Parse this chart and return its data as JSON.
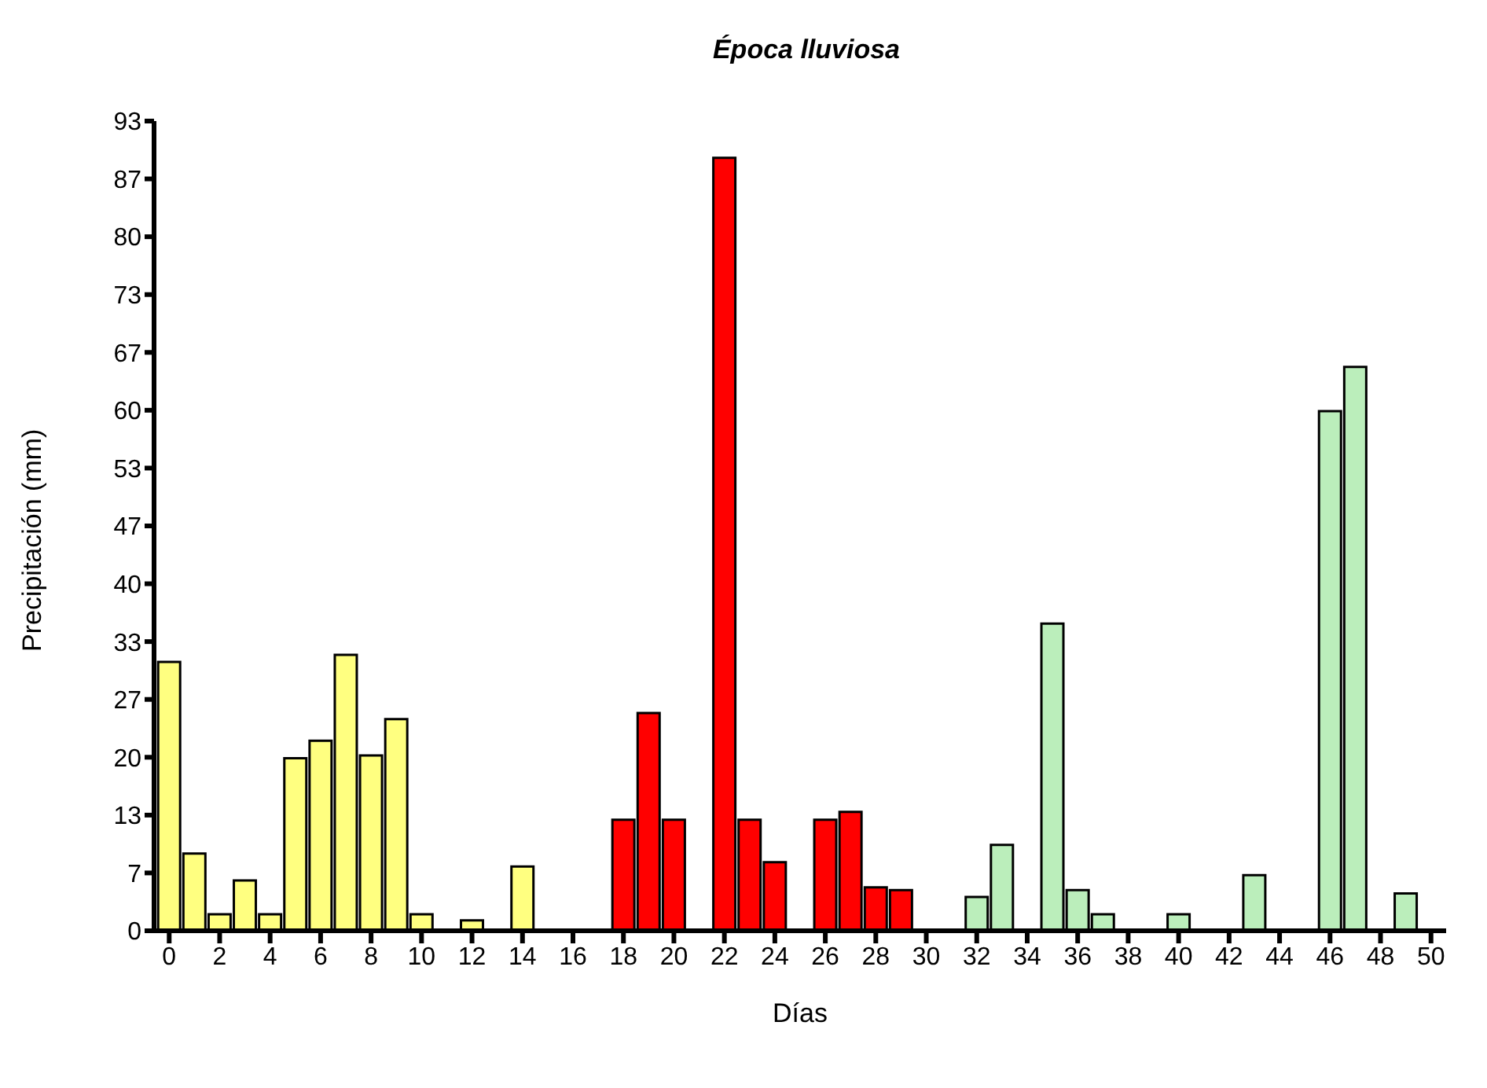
{
  "chart_data": {
    "type": "bar",
    "title": "Época lluviosa",
    "xlabel": "Días",
    "ylabel": "Precipitación (mm)",
    "series": [
      {
        "color": "#ffff80",
        "x": [
          0,
          1,
          2,
          3,
          4,
          5,
          6,
          7,
          8,
          9,
          10,
          11,
          12,
          13,
          14,
          15,
          16
        ],
        "values": [
          31.0,
          8.9,
          1.9,
          5.8,
          1.9,
          19.9,
          21.9,
          31.8,
          20.2,
          24.4,
          1.9,
          0,
          1.2,
          0,
          7.4,
          0,
          0
        ]
      },
      {
        "color": "#ff0000",
        "x": [
          17,
          18,
          19,
          20,
          21,
          22,
          23,
          24,
          25,
          26,
          27,
          28,
          29,
          30,
          31
        ],
        "values": [
          0,
          12.8,
          25.1,
          12.8,
          0,
          89.1,
          12.8,
          7.9,
          0,
          12.8,
          13.7,
          5.0,
          4.7,
          0,
          0
        ]
      },
      {
        "color": "#bbeebb",
        "x": [
          32,
          33,
          34,
          35,
          36,
          37,
          38,
          39,
          40,
          41,
          42,
          43,
          44,
          45,
          46,
          47,
          48,
          49,
          50
        ],
        "values": [
          3.9,
          9.9,
          0,
          35.4,
          4.7,
          1.9,
          0,
          0,
          1.9,
          0,
          0,
          6.4,
          0,
          0,
          59.9,
          65.0,
          0,
          4.3,
          0
        ]
      }
    ],
    "xlim": [
      -0.6,
      50.6
    ],
    "xticks": [
      0,
      2,
      4,
      6,
      8,
      10,
      12,
      14,
      16,
      18,
      20,
      22,
      24,
      26,
      28,
      30,
      32,
      34,
      36,
      38,
      40,
      42,
      44,
      46,
      48,
      50
    ],
    "ylim": [
      0,
      93.333
    ],
    "yticks": [
      0,
      {
        "value": 6.667,
        "label": "7"
      },
      {
        "value": 13.333,
        "label": "13"
      },
      20,
      {
        "value": 26.667,
        "label": "27"
      },
      {
        "value": 33.333,
        "label": "33"
      },
      40,
      {
        "value": 46.667,
        "label": "47"
      },
      {
        "value": 53.333,
        "label": "53"
      },
      60,
      {
        "value": 66.667,
        "label": "67"
      },
      {
        "value": 73.333,
        "label": "73"
      },
      80,
      {
        "value": 86.667,
        "label": "87"
      },
      {
        "value": 93.333,
        "label": "93"
      }
    ],
    "grid": false
  }
}
